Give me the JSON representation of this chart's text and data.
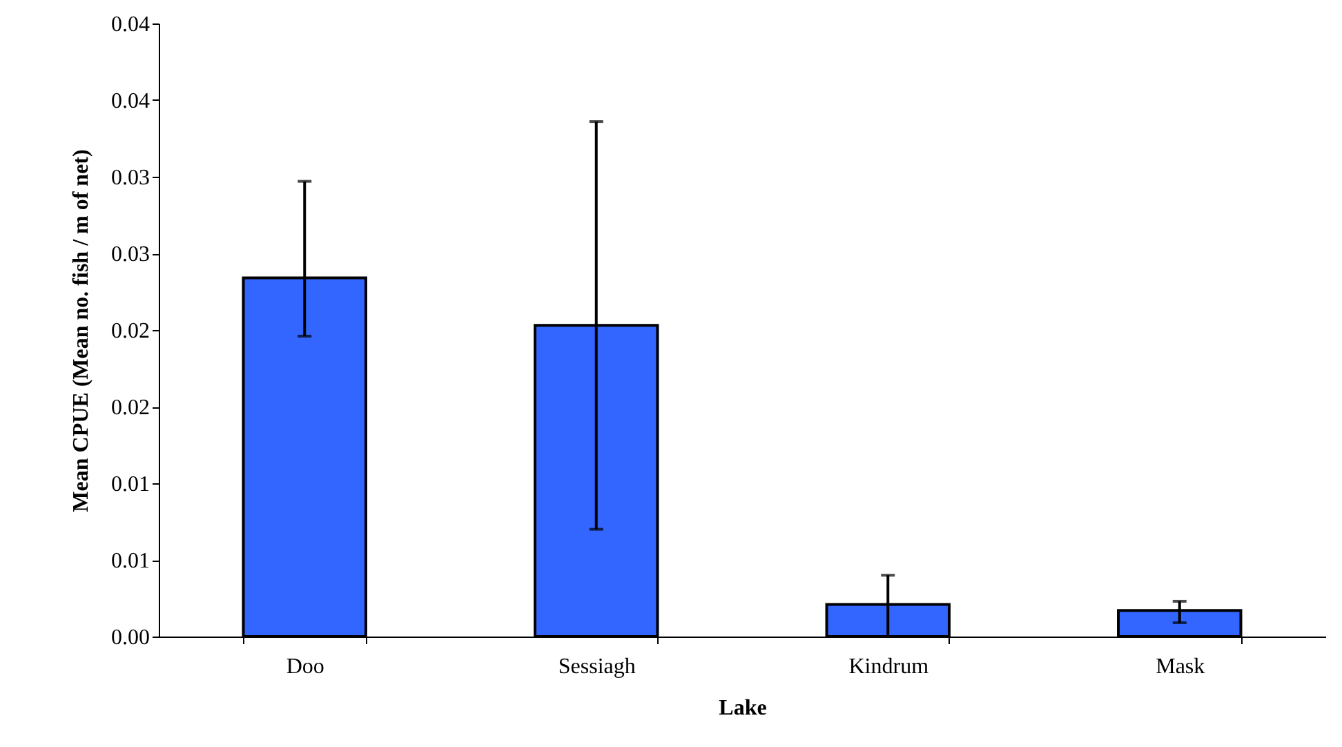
{
  "chart_data": {
    "type": "bar",
    "xlabel": "Lake",
    "ylabel": "Mean CPUE (Mean no. fish / m of net)",
    "categories": [
      "Doo",
      "Sessiagh",
      "Kindrum",
      "Mask"
    ],
    "values": [
      0.0234,
      0.0203,
      0.0021,
      0.0017
    ],
    "errors": [
      [
        0.0196,
        0.0297
      ],
      [
        0.007,
        0.0336
      ],
      [
        0,
        0.004
      ],
      [
        0.0009,
        0.0023
      ]
    ],
    "color": "#3366ff",
    "ylim": [
      0,
      0.04
    ],
    "yticks": [
      {
        "value": 0,
        "label": "0.00"
      },
      {
        "value": 0.005,
        "label": "0.01"
      },
      {
        "value": 0.01,
        "label": "0.01"
      },
      {
        "value": 0.015,
        "label": "0.02"
      },
      {
        "value": 0.02,
        "label": "0.02"
      },
      {
        "value": 0.025,
        "label": "0.03"
      },
      {
        "value": 0.03,
        "label": "0.03"
      },
      {
        "value": 0.035,
        "label": "0.04"
      },
      {
        "value": 0.04,
        "label": "0.04"
      }
    ],
    "grid": false
  }
}
